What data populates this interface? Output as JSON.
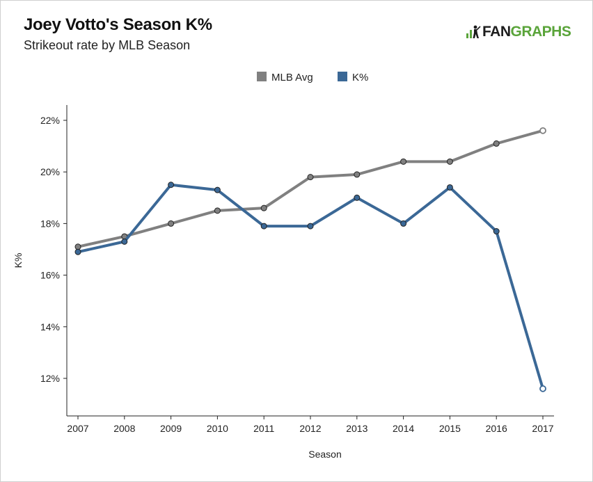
{
  "header": {
    "title": "Joey Votto's Season K%",
    "subtitle": "Strikeout rate by MLB Season",
    "logo_text_fan": "FAN",
    "logo_text_graphs": "GRAPHS"
  },
  "colors": {
    "mlb_avg": "#808080",
    "k_pct": "#3b6896",
    "logo_green": "#5aa43a"
  },
  "chart_data": {
    "type": "line",
    "xlabel": "Season",
    "ylabel": "K%",
    "x": [
      2007,
      2008,
      2009,
      2010,
      2011,
      2012,
      2013,
      2014,
      2015,
      2016,
      2017
    ],
    "ylim": [
      11,
      22.6
    ],
    "yticks": [
      12,
      14,
      16,
      18,
      20,
      22
    ],
    "ytick_labels": [
      "12%",
      "14%",
      "16%",
      "18%",
      "20%",
      "22%"
    ],
    "legend_position": "top-center",
    "grid": false,
    "series": [
      {
        "name": "MLB Avg",
        "color": "#808080",
        "values": [
          17.1,
          17.5,
          18.0,
          18.5,
          18.6,
          19.8,
          19.9,
          20.4,
          20.4,
          21.1,
          21.6
        ]
      },
      {
        "name": "K%",
        "color": "#3b6896",
        "values": [
          16.9,
          17.3,
          19.5,
          19.3,
          17.9,
          17.9,
          19.0,
          18.0,
          19.4,
          17.7,
          11.6
        ]
      }
    ]
  }
}
